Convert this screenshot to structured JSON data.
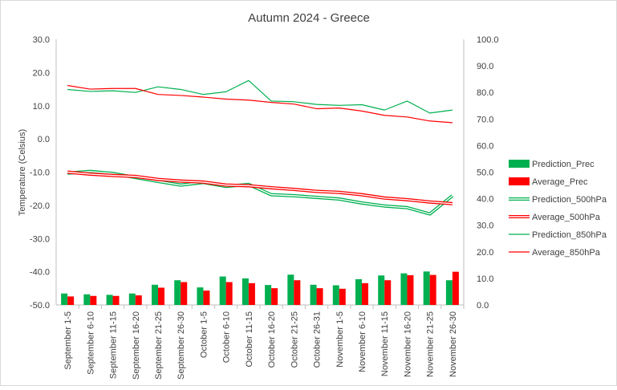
{
  "chart_data": {
    "type": "bar",
    "title": "Autumn 2024 - Greece",
    "ylabel": "Temperature (Celsius)",
    "ylim": [
      -50,
      30
    ],
    "y_ticks": [
      "30.0",
      "20.0",
      "10.0",
      "0.0",
      "-10.0",
      "-20.0",
      "-30.0",
      "-40.0",
      "-50.0"
    ],
    "y2lim": [
      0,
      100
    ],
    "y2_ticks": [
      "100.0",
      "90.0",
      "80.0",
      "70.0",
      "60.0",
      "50.0",
      "40.0",
      "30.0",
      "20.0",
      "10.0",
      "0.0"
    ],
    "categories": [
      "September 1-5",
      "September 6-10",
      "September 11-15",
      "September 16-20",
      "September 21-25",
      "September 26-30",
      "October 1-5",
      "October 6-10",
      "October 11-15",
      "October 16-20",
      "October 21-25",
      "October 26-31",
      "November 1-5",
      "November 6-10",
      "November 11-15",
      "November 16-20",
      "November 21-25",
      "November 26-30"
    ],
    "legend_position": "right",
    "grid": false,
    "series": [
      {
        "name": "Prediction_Prec",
        "kind": "bar",
        "axis": "right",
        "color": "#00b050",
        "values": [
          4.3,
          4.0,
          3.8,
          4.3,
          7.6,
          9.3,
          6.6,
          10.7,
          10.0,
          7.5,
          11.4,
          7.6,
          7.4,
          9.7,
          11.1,
          11.9,
          12.6,
          9.3
        ]
      },
      {
        "name": "Average_Prec",
        "kind": "bar",
        "axis": "right",
        "color": "#ff0000",
        "values": [
          3.2,
          3.4,
          3.4,
          3.6,
          6.5,
          8.6,
          5.4,
          8.6,
          8.2,
          6.3,
          9.3,
          6.3,
          6.1,
          8.2,
          9.3,
          11.2,
          11.3,
          12.5
        ]
      },
      {
        "name": "Prediction_500hPa",
        "kind": "double-line",
        "axis": "left",
        "color": "#00b050",
        "values": [
          -10.3,
          -9.8,
          -10.4,
          -11.6,
          -12.8,
          -13.9,
          -13.1,
          -14.3,
          -13.7,
          -16.8,
          -17.1,
          -17.6,
          -18.1,
          -19.3,
          -20.2,
          -20.7,
          -22.6,
          -17.1
        ]
      },
      {
        "name": "Average_500hPa",
        "kind": "double-line",
        "axis": "left",
        "color": "#ff0000",
        "values": [
          -10.0,
          -10.6,
          -11.0,
          -11.3,
          -12.2,
          -12.7,
          -13.0,
          -13.9,
          -14.1,
          -14.7,
          -15.2,
          -15.8,
          -16.1,
          -16.8,
          -17.8,
          -18.3,
          -19.0,
          -19.5
        ]
      },
      {
        "name": "Prediction_850hPa",
        "kind": "line",
        "axis": "left",
        "color": "#00b050",
        "values": [
          14.9,
          14.3,
          14.5,
          14.0,
          15.7,
          14.9,
          13.4,
          14.2,
          17.6,
          11.4,
          11.2,
          10.4,
          10.1,
          10.3,
          8.7,
          11.4,
          7.8,
          8.7
        ]
      },
      {
        "name": "Average_850hPa",
        "kind": "line",
        "axis": "left",
        "color": "#ff0000",
        "values": [
          16.1,
          15.0,
          15.2,
          15.2,
          13.4,
          13.1,
          12.6,
          12.0,
          11.7,
          11.0,
          10.5,
          9.1,
          9.3,
          8.4,
          7.1,
          6.6,
          5.4,
          4.9
        ]
      }
    ]
  }
}
